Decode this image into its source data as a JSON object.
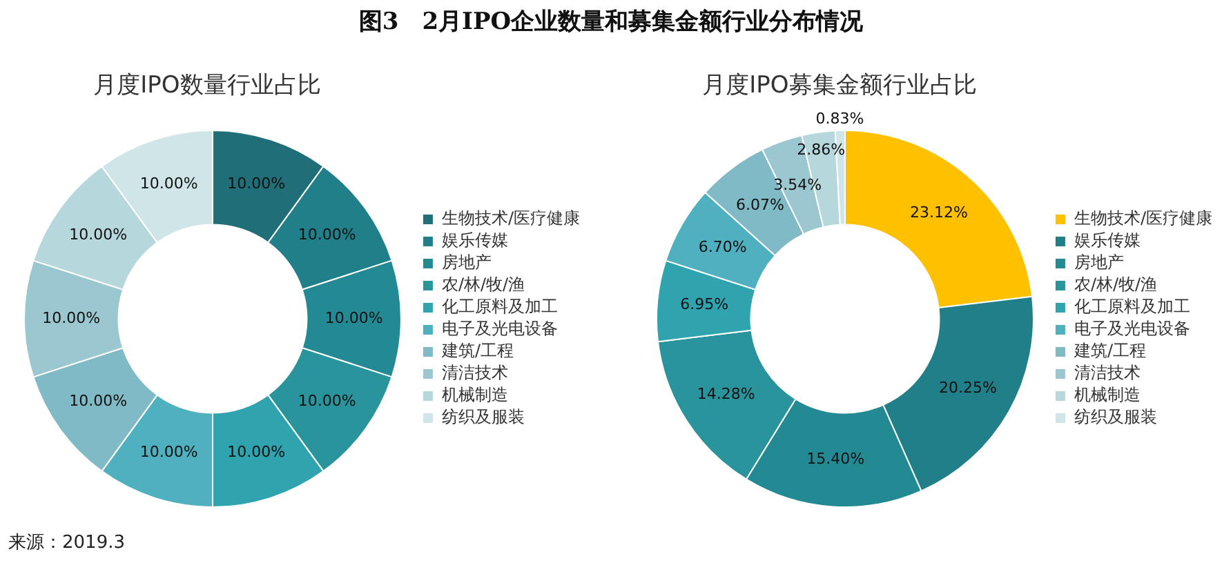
{
  "chart_data": [
    {
      "type": "donut",
      "title": "图3　2月IPO企业数量和募集金额行业分布情况",
      "subtitle": "月度IPO数量行业占比",
      "categories": [
        "生物技术/医疗健康",
        "娱乐传媒",
        "房地产",
        "农/林/牧/渔",
        "化工原料及加工",
        "电子及光电设备",
        "建筑/工程",
        "清洁技术",
        "机械制造",
        "纺织及服装"
      ],
      "values": [
        10,
        10,
        10,
        10,
        10,
        10,
        10,
        10,
        10,
        10
      ],
      "value_labels": [
        "10.00%",
        "10.00%",
        "10.00%",
        "10.00%",
        "10.00%",
        "10.00%",
        "10.00%",
        "10.00%",
        "10.00%",
        "10.00%"
      ],
      "colors": [
        "#1f6e78",
        "#207f88",
        "#238a93",
        "#2a949d",
        "#30a4ae",
        "#4fb0bf",
        "#80bac6",
        "#9bc8d0",
        "#b6d7dc",
        "#cfe5e8"
      ],
      "legend": "right",
      "annotations": [
        "来源：2019.3"
      ]
    },
    {
      "type": "donut",
      "title": "月度IPO募集金额行业占比",
      "categories": [
        "生物技术/医疗健康",
        "娱乐传媒",
        "房地产",
        "农/林/牧/渔",
        "化工原料及加工",
        "电子及光电设备",
        "建筑/工程",
        "清洁技术",
        "机械制造",
        "纺织及服装"
      ],
      "values": [
        23.12,
        20.25,
        15.4,
        14.28,
        6.95,
        6.7,
        6.07,
        3.54,
        2.86,
        0.83
      ],
      "value_labels": [
        "23.12%",
        "20.25%",
        "15.40%",
        "14.28%",
        "6.95%",
        "6.70%",
        "6.07%",
        "3.54%",
        "2.86%",
        "0.83%"
      ],
      "colors": [
        "#ffc000",
        "#207f88",
        "#238a93",
        "#2a949d",
        "#30a4ae",
        "#4fb0bf",
        "#80bac6",
        "#9bc8d0",
        "#b6d7dc",
        "#cfe5e8"
      ],
      "legend": "right"
    }
  ]
}
